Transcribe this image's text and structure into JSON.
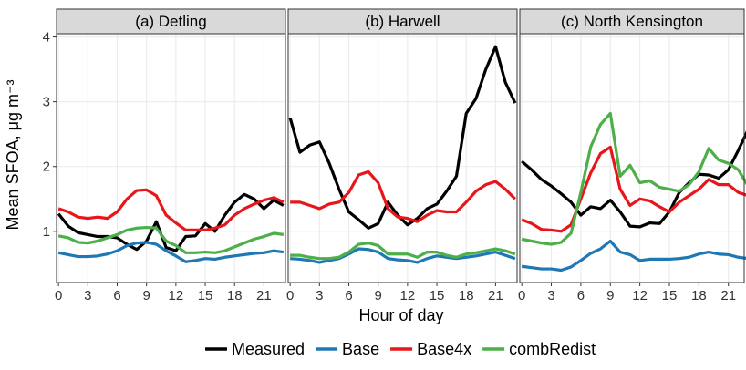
{
  "chart_data": [
    {
      "type": "line",
      "title": "(a) Detling",
      "ylabel": "Mean SFOA,  μg m⁻³",
      "x": [
        0,
        1,
        2,
        3,
        4,
        5,
        6,
        7,
        8,
        9,
        10,
        11,
        12,
        13,
        14,
        15,
        16,
        17,
        18,
        19,
        20,
        21,
        22,
        23
      ],
      "xlim": [
        -0.2,
        23.2
      ],
      "xticks": [
        0,
        3,
        6,
        9,
        12,
        15,
        18,
        21
      ],
      "ylim": [
        0.21,
        4.05
      ],
      "yticks": [
        1,
        2,
        3,
        4
      ],
      "grid": true,
      "series": [
        {
          "name": "Measured",
          "color": "#000000",
          "values": [
            1.27,
            1.08,
            0.98,
            0.95,
            0.92,
            0.92,
            0.9,
            0.8,
            0.72,
            0.85,
            1.15,
            0.75,
            0.7,
            0.92,
            0.93,
            1.12,
            1.0,
            1.25,
            1.45,
            1.57,
            1.5,
            1.35,
            1.48,
            1.4
          ]
        },
        {
          "name": "Base",
          "color": "#1f78b4",
          "values": [
            0.67,
            0.64,
            0.61,
            0.61,
            0.62,
            0.65,
            0.7,
            0.78,
            0.82,
            0.83,
            0.8,
            0.7,
            0.62,
            0.53,
            0.55,
            0.58,
            0.57,
            0.6,
            0.62,
            0.64,
            0.66,
            0.67,
            0.7,
            0.68
          ]
        },
        {
          "name": "Base4x",
          "color": "#e8161b",
          "values": [
            1.35,
            1.3,
            1.22,
            1.2,
            1.22,
            1.2,
            1.3,
            1.5,
            1.63,
            1.64,
            1.55,
            1.25,
            1.13,
            1.02,
            1.02,
            1.02,
            1.05,
            1.1,
            1.25,
            1.35,
            1.42,
            1.48,
            1.52,
            1.45
          ]
        },
        {
          "name": "combRedist",
          "color": "#4daf4a",
          "values": [
            0.93,
            0.9,
            0.83,
            0.82,
            0.85,
            0.9,
            0.95,
            1.02,
            1.05,
            1.06,
            1.05,
            0.85,
            0.78,
            0.67,
            0.67,
            0.68,
            0.67,
            0.7,
            0.76,
            0.82,
            0.88,
            0.92,
            0.97,
            0.95
          ]
        }
      ]
    },
    {
      "type": "line",
      "title": "(b) Harwell",
      "xlabel": "Hour of day",
      "x": [
        0,
        1,
        2,
        3,
        4,
        5,
        6,
        7,
        8,
        9,
        10,
        11,
        12,
        13,
        14,
        15,
        16,
        17,
        18,
        19,
        20,
        21,
        22,
        23
      ],
      "xlim": [
        -0.2,
        23.2
      ],
      "xticks": [
        0,
        3,
        6,
        9,
        12,
        15,
        18,
        21
      ],
      "ylim": [
        0.21,
        4.05
      ],
      "grid": true,
      "series": [
        {
          "color": "#000000",
          "values": [
            2.75,
            2.22,
            2.33,
            2.38,
            2.05,
            1.65,
            1.3,
            1.18,
            1.05,
            1.12,
            1.45,
            1.25,
            1.1,
            1.2,
            1.35,
            1.42,
            1.62,
            1.85,
            2.82,
            3.05,
            3.5,
            3.85,
            3.3,
            2.98
          ]
        },
        {
          "color": "#1f78b4",
          "values": [
            0.58,
            0.57,
            0.55,
            0.52,
            0.55,
            0.58,
            0.65,
            0.73,
            0.72,
            0.68,
            0.58,
            0.56,
            0.55,
            0.52,
            0.58,
            0.62,
            0.6,
            0.58,
            0.6,
            0.62,
            0.65,
            0.68,
            0.63,
            0.58
          ]
        },
        {
          "color": "#e8161b",
          "values": [
            1.45,
            1.45,
            1.4,
            1.35,
            1.42,
            1.45,
            1.6,
            1.87,
            1.92,
            1.75,
            1.35,
            1.22,
            1.2,
            1.15,
            1.25,
            1.32,
            1.3,
            1.3,
            1.45,
            1.62,
            1.72,
            1.77,
            1.65,
            1.5
          ]
        },
        {
          "color": "#4daf4a",
          "values": [
            0.63,
            0.63,
            0.6,
            0.58,
            0.58,
            0.6,
            0.68,
            0.8,
            0.82,
            0.78,
            0.65,
            0.65,
            0.65,
            0.6,
            0.68,
            0.68,
            0.63,
            0.6,
            0.65,
            0.67,
            0.7,
            0.73,
            0.7,
            0.65
          ]
        }
      ]
    },
    {
      "type": "line",
      "title": "(c) North Kensington",
      "x": [
        0,
        1,
        2,
        3,
        4,
        5,
        6,
        7,
        8,
        9,
        10,
        11,
        12,
        13,
        14,
        15,
        16,
        17,
        18,
        19,
        20,
        21,
        22,
        23
      ],
      "xlim": [
        -0.2,
        22.6
      ],
      "xticks": [
        0,
        3,
        6,
        9,
        12,
        15,
        18,
        21
      ],
      "ylim": [
        0.21,
        4.05
      ],
      "grid": true,
      "series": [
        {
          "color": "#000000",
          "values": [
            2.08,
            1.95,
            1.8,
            1.7,
            1.58,
            1.45,
            1.25,
            1.38,
            1.35,
            1.48,
            1.3,
            1.08,
            1.07,
            1.13,
            1.12,
            1.3,
            1.6,
            1.75,
            1.88,
            1.87,
            1.82,
            1.95,
            2.25,
            2.57
          ]
        },
        {
          "color": "#1f78b4",
          "values": [
            0.46,
            0.44,
            0.42,
            0.42,
            0.4,
            0.45,
            0.55,
            0.66,
            0.73,
            0.85,
            0.68,
            0.64,
            0.55,
            0.57,
            0.57,
            0.57,
            0.58,
            0.6,
            0.65,
            0.68,
            0.65,
            0.64,
            0.6,
            0.58
          ]
        },
        {
          "color": "#e8161b",
          "values": [
            1.18,
            1.12,
            1.03,
            1.02,
            1.0,
            1.1,
            1.5,
            1.9,
            2.2,
            2.3,
            1.65,
            1.4,
            1.5,
            1.47,
            1.38,
            1.3,
            1.45,
            1.55,
            1.65,
            1.8,
            1.72,
            1.72,
            1.6,
            1.55
          ]
        },
        {
          "color": "#4daf4a",
          "values": [
            0.88,
            0.85,
            0.82,
            0.8,
            0.83,
            0.97,
            1.6,
            2.3,
            2.65,
            2.82,
            1.85,
            2.02,
            1.75,
            1.78,
            1.68,
            1.65,
            1.62,
            1.72,
            1.92,
            2.28,
            2.1,
            2.05,
            1.95,
            1.7
          ]
        }
      ]
    }
  ]
}
